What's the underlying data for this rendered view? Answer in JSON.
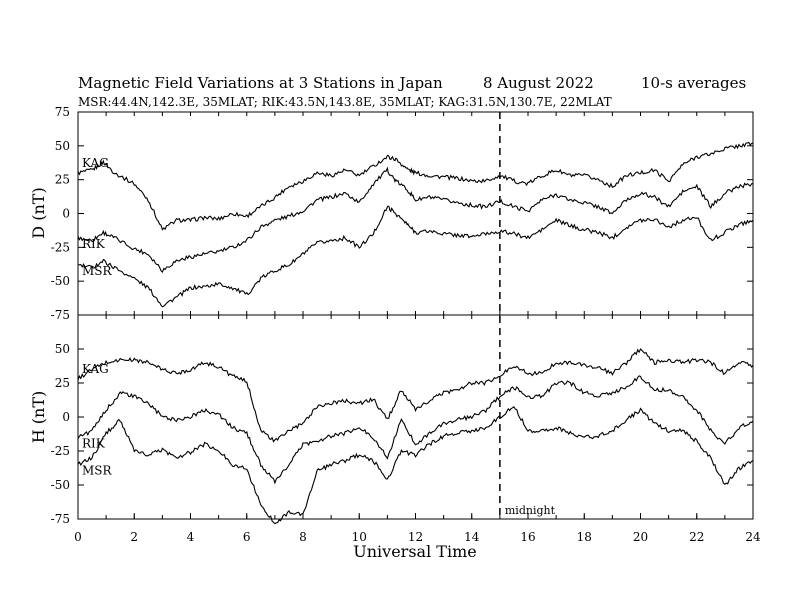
{
  "chart_data": {
    "type": "line",
    "title": {
      "main": "Magnetic Field Variations at 3 Stations in Japan",
      "date": "8   August   2022",
      "note": "10-s averages"
    },
    "subtitle": "MSR:44.4N,142.3E, 35MLAT;  RIK:43.5N,143.8E, 35MLAT;  KAG:31.5N,130.7E, 22MLAT",
    "xlabel": "Universal Time",
    "xlim": [
      0,
      24
    ],
    "x_ticks": [
      "0",
      "2",
      "4",
      "6",
      "8",
      "10",
      "12",
      "14",
      "16",
      "18",
      "20",
      "22",
      "24"
    ],
    "annotation": {
      "x": 15,
      "label": "midnight"
    },
    "panels": [
      {
        "ylabel": "D (nT)",
        "ylim": [
          -75,
          75
        ],
        "y_ticks": [
          "75",
          "50",
          "25",
          "0",
          "-25",
          "-50",
          "-75"
        ],
        "series": [
          {
            "name": "KAG",
            "x": [
              0,
              0.5,
              0.9,
              1.3,
              2,
              2.5,
              3,
              3.5,
              4,
              4.5,
              5,
              5.5,
              6,
              6.5,
              7,
              7.5,
              8,
              8.5,
              9,
              9.5,
              10,
              10.5,
              11,
              11.3,
              11.7,
              12,
              12.5,
              13,
              13.5,
              14,
              14.5,
              15,
              15.5,
              16,
              16.5,
              17,
              17.5,
              18,
              18.5,
              19,
              19.5,
              20,
              20.5,
              21,
              21.5,
              22,
              22.5,
              23,
              23.5,
              24
            ],
            "y": [
              30,
              32,
              38,
              30,
              22,
              10,
              -12,
              -5,
              -5,
              -3,
              -4,
              0,
              -2,
              5,
              12,
              20,
              24,
              30,
              28,
              32,
              28,
              35,
              42,
              40,
              33,
              30,
              28,
              27,
              26,
              24,
              24,
              28,
              24,
              22,
              28,
              32,
              28,
              28,
              25,
              20,
              28,
              30,
              32,
              24,
              36,
              42,
              44,
              48,
              50,
              52
            ]
          },
          {
            "name": "RIK",
            "x": [
              0,
              0.5,
              0.9,
              1.3,
              2,
              2.5,
              3,
              3.5,
              4,
              4.5,
              5,
              5.5,
              6,
              6.5,
              7,
              7.5,
              8,
              8.5,
              9,
              9.5,
              10,
              10.5,
              11,
              11.3,
              11.7,
              12,
              12.5,
              13,
              13.5,
              14,
              14.5,
              15,
              15.5,
              16,
              16.5,
              17,
              17.5,
              18,
              18.5,
              19,
              19.5,
              20,
              20.5,
              21,
              21.5,
              22,
              22.5,
              23,
              23.5,
              24
            ],
            "y": [
              -18,
              -20,
              -14,
              -18,
              -26,
              -30,
              -42,
              -35,
              -32,
              -30,
              -28,
              -25,
              -20,
              -10,
              -5,
              -2,
              2,
              10,
              12,
              15,
              8,
              22,
              32,
              24,
              18,
              10,
              12,
              10,
              8,
              6,
              5,
              9,
              5,
              2,
              10,
              14,
              10,
              8,
              5,
              0,
              10,
              15,
              12,
              5,
              16,
              20,
              5,
              15,
              20,
              22
            ]
          },
          {
            "name": "MSR",
            "x": [
              0,
              0.5,
              0.9,
              1.3,
              2,
              2.5,
              3,
              3.5,
              4,
              4.5,
              5,
              5.5,
              6,
              6.5,
              7,
              7.5,
              8,
              8.5,
              9,
              9.5,
              10,
              10.5,
              11,
              11.3,
              11.7,
              12,
              12.5,
              13,
              13.5,
              14,
              14.5,
              15,
              15.5,
              16,
              16.5,
              17,
              17.5,
              18,
              18.5,
              19,
              19.5,
              20,
              20.5,
              21,
              21.5,
              22,
              22.5,
              23,
              23.5,
              24
            ],
            "y": [
              -38,
              -40,
              -35,
              -40,
              -48,
              -55,
              -68,
              -62,
              -55,
              -54,
              -52,
              -55,
              -60,
              -48,
              -42,
              -38,
              -30,
              -22,
              -20,
              -18,
              -25,
              -15,
              5,
              0,
              -8,
              -14,
              -13,
              -15,
              -16,
              -17,
              -15,
              -13,
              -15,
              -18,
              -12,
              -5,
              -9,
              -12,
              -14,
              -18,
              -10,
              -5,
              -4,
              -10,
              -5,
              -3,
              -20,
              -14,
              -8,
              -5
            ]
          }
        ]
      },
      {
        "ylabel": "H (nT)",
        "ylim": [
          -75,
          75
        ],
        "y_ticks": [
          "75",
          "50",
          "25",
          "0",
          "-25",
          "-50",
          "-75"
        ],
        "series": [
          {
            "name": "KAG",
            "x": [
              0,
              0.5,
              1,
              1.5,
              2,
              2.5,
              3,
              3.5,
              4,
              4.5,
              5,
              5.5,
              6,
              6.5,
              7,
              7.5,
              8,
              8.5,
              9,
              9.5,
              10,
              10.5,
              11,
              11.5,
              12,
              12.5,
              13,
              13.5,
              14,
              14.5,
              15,
              15.5,
              16,
              16.5,
              17,
              17.5,
              18,
              18.5,
              19,
              19.5,
              20,
              20.5,
              21,
              21.5,
              22,
              22.5,
              23,
              23.5,
              24
            ],
            "y": [
              28,
              35,
              40,
              42,
              42,
              40,
              35,
              32,
              35,
              40,
              37,
              30,
              26,
              -10,
              -18,
              -10,
              -5,
              8,
              10,
              12,
              10,
              13,
              -2,
              20,
              5,
              12,
              18,
              20,
              25,
              25,
              30,
              38,
              32,
              32,
              40,
              40,
              38,
              36,
              32,
              40,
              50,
              40,
              42,
              40,
              42,
              40,
              32,
              40,
              38
            ]
          },
          {
            "name": "RIK",
            "x": [
              0,
              0.5,
              1,
              1.5,
              2,
              2.5,
              3,
              3.5,
              4,
              4.5,
              5,
              5.5,
              6,
              6.5,
              7,
              7.5,
              8,
              8.5,
              9,
              9.5,
              10,
              10.5,
              11,
              11.5,
              12,
              12.5,
              13,
              13.5,
              14,
              14.5,
              15,
              15.5,
              16,
              16.5,
              17,
              17.5,
              18,
              18.5,
              19,
              19.5,
              20,
              20.5,
              21,
              21.5,
              22,
              22.5,
              23,
              23.5,
              24
            ],
            "y": [
              -15,
              -10,
              5,
              18,
              15,
              10,
              0,
              -2,
              0,
              5,
              2,
              -8,
              -12,
              -35,
              -48,
              -35,
              -20,
              -18,
              -14,
              -12,
              -8,
              -15,
              -30,
              -2,
              -20,
              -12,
              -5,
              -2,
              0,
              5,
              15,
              22,
              15,
              15,
              25,
              25,
              18,
              15,
              18,
              22,
              30,
              20,
              20,
              15,
              5,
              -10,
              -20,
              -8,
              -3
            ]
          },
          {
            "name": "MSR",
            "x": [
              0,
              0.5,
              1,
              1.5,
              2,
              2.5,
              3,
              3.5,
              4,
              4.5,
              5,
              5.5,
              6,
              6.5,
              7,
              7.5,
              8,
              8.5,
              9,
              9.5,
              10,
              10.5,
              11,
              11.5,
              12,
              12.5,
              13,
              13.5,
              14,
              14.5,
              15,
              15.5,
              16,
              16.5,
              17,
              17.5,
              18,
              18.5,
              19,
              19.5,
              20,
              20.5,
              21,
              21.5,
              22,
              22.5,
              23,
              23.5,
              24
            ],
            "y": [
              -35,
              -30,
              -12,
              -2,
              -25,
              -28,
              -24,
              -30,
              -26,
              -20,
              -25,
              -35,
              -38,
              -65,
              -78,
              -70,
              -72,
              -40,
              -35,
              -32,
              -28,
              -32,
              -46,
              -25,
              -28,
              -20,
              -14,
              -12,
              -10,
              -8,
              0,
              8,
              -10,
              -10,
              -8,
              -12,
              -15,
              -14,
              -10,
              -2,
              5,
              -5,
              -10,
              -10,
              -18,
              -30,
              -50,
              -38,
              -32
            ]
          }
        ]
      }
    ]
  }
}
